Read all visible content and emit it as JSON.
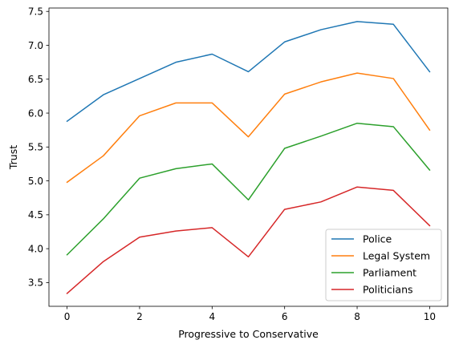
{
  "chart_data": {
    "type": "line",
    "title": "",
    "xlabel": "Progressive to Conservative",
    "ylabel": "Trust",
    "xlim": [
      -0.5,
      10.5
    ],
    "ylim": [
      3.15,
      7.55
    ],
    "xticks": [
      0,
      2,
      4,
      6,
      8,
      10
    ],
    "yticks": [
      3.5,
      4.0,
      4.5,
      5.0,
      5.5,
      6.0,
      6.5,
      7.0,
      7.5
    ],
    "ytick_labels": [
      "3.5",
      "4.0",
      "4.5",
      "5.0",
      "5.5",
      "6.0",
      "6.5",
      "7.0",
      "7.5"
    ],
    "grid": false,
    "legend_position": "lower right",
    "x": [
      0,
      1,
      2,
      3,
      4,
      5,
      6,
      7,
      8,
      9,
      10
    ],
    "series": [
      {
        "name": "Police",
        "color": "#1f77b4",
        "values": [
          5.88,
          6.27,
          6.51,
          6.75,
          6.87,
          6.61,
          7.05,
          7.23,
          7.35,
          7.31,
          6.61
        ]
      },
      {
        "name": "Legal System",
        "color": "#ff7f0e",
        "values": [
          4.98,
          5.37,
          5.96,
          6.15,
          6.15,
          5.65,
          6.28,
          6.46,
          6.59,
          6.51,
          5.75
        ]
      },
      {
        "name": "Parliament",
        "color": "#2ca02c",
        "values": [
          3.91,
          4.44,
          5.04,
          5.18,
          5.25,
          4.72,
          5.48,
          5.66,
          5.85,
          5.8,
          5.16
        ]
      },
      {
        "name": "Politicians",
        "color": "#d62728",
        "values": [
          3.34,
          3.81,
          4.17,
          4.26,
          4.31,
          3.88,
          4.58,
          4.69,
          4.91,
          4.86,
          4.34
        ]
      }
    ]
  }
}
